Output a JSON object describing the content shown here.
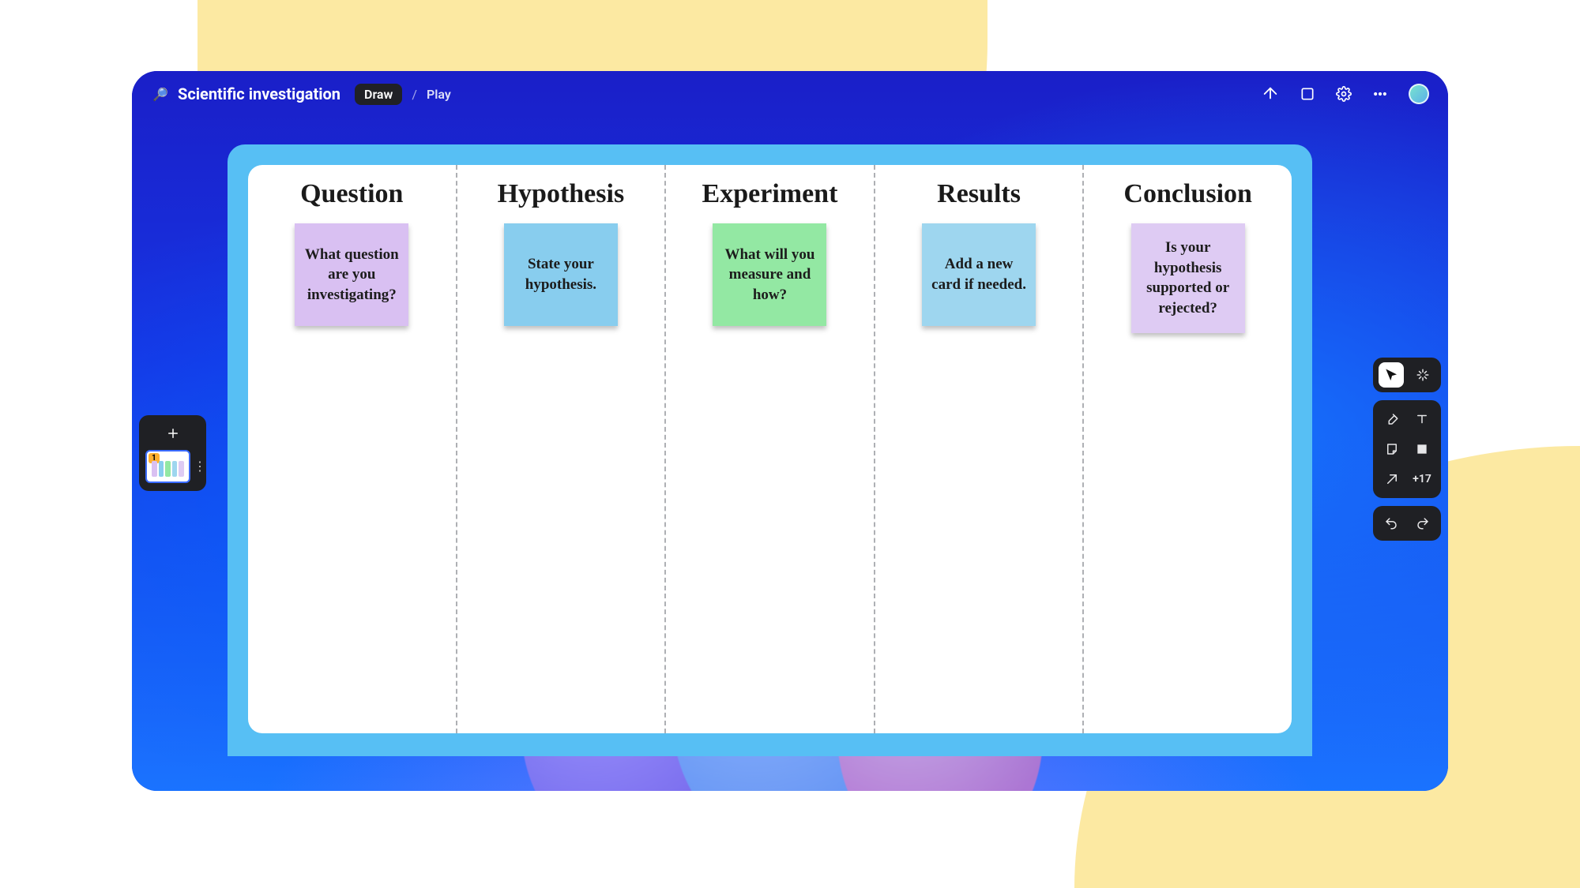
{
  "page": {
    "background_color": "#ffffff",
    "accent_shape_color": "#fce9a2"
  },
  "header": {
    "icon": "🔎",
    "title": "Scientific investigation",
    "mode_active": "Draw",
    "mode_inactive": "Play",
    "avatar_gradient": [
      "#78e3cf",
      "#5bb0e8"
    ]
  },
  "window": {
    "corner_radius": 32,
    "gradient_colors": [
      "#1a1fc8",
      "#1735e4",
      "#1a73ff"
    ],
    "canvas_frame_color": "#57bff4",
    "board_bg": "#ffffff",
    "divider_color": "#aeb0b4"
  },
  "board": {
    "heading_font": "Comic Sans MS",
    "heading_fontsize": 34,
    "sticky_fontsize": 19,
    "sticky_width": 144,
    "sticky_shadow": "0 4px 6px rgba(0,0,0,.25)",
    "columns": [
      {
        "title": "Question",
        "sticky": {
          "text": "What question are you investigating?",
          "bg": "#d9c0f2"
        }
      },
      {
        "title": "Hypothesis",
        "sticky": {
          "text": "State your hypothesis.",
          "bg": "#88cdee"
        }
      },
      {
        "title": "Experiment",
        "sticky": {
          "text": "What will you measure and how?",
          "bg": "#93e8a3"
        }
      },
      {
        "title": "Results",
        "sticky": {
          "text": "Add a new card if needed.",
          "bg": "#9ed6ef"
        }
      },
      {
        "title": "Conclusion",
        "sticky": {
          "text": "Is your hypothesis supported or rejected?",
          "bg": "#decbf3"
        }
      }
    ]
  },
  "slide_panel": {
    "slide_number": "1",
    "mini_colors": [
      "#d9c0f2",
      "#88cdee",
      "#93e8a3",
      "#9ed6ef",
      "#decbf3"
    ]
  },
  "tool_panel": {
    "extra_count": "+17",
    "panel_bg": "#1f2024"
  }
}
